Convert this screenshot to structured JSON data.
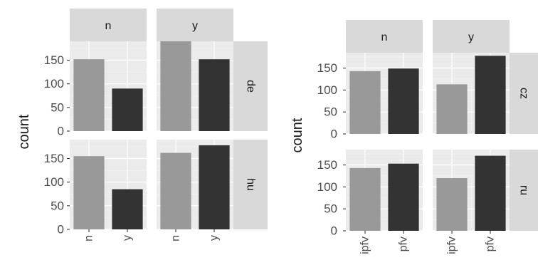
{
  "colors": {
    "panel_bg": "#ebebeb",
    "strip_bg": "#d9d9d9",
    "grid_major": "#ffffff",
    "grid_minor": "#f2f2f2",
    "text": "#1a1a1a",
    "tick_text": "#4d4d4d",
    "bar_light": "#999999",
    "bar_dark": "#333333"
  },
  "chart_data": [
    {
      "type": "bar",
      "facet_cols": [
        "n",
        "y"
      ],
      "facet_rows": [
        "de",
        "hu"
      ],
      "categories": [
        "n",
        "y"
      ],
      "ylabel": "count",
      "xlabel": "",
      "ylim": [
        0,
        190
      ],
      "yticks": [
        0,
        50,
        100,
        150
      ],
      "grid": true,
      "panels": [
        {
          "col": "n",
          "row": "de",
          "values": [
            152,
            90
          ]
        },
        {
          "col": "y",
          "row": "de",
          "values": [
            190,
            152
          ]
        },
        {
          "col": "n",
          "row": "hu",
          "values": [
            155,
            85
          ]
        },
        {
          "col": "y",
          "row": "hu",
          "values": [
            162,
            178
          ]
        }
      ]
    },
    {
      "type": "bar",
      "facet_cols": [
        "n",
        "y"
      ],
      "facet_rows": [
        "cz",
        "ru"
      ],
      "categories": [
        "ipfv",
        "pfv"
      ],
      "ylabel": "count",
      "xlabel": "",
      "ylim": [
        0,
        185
      ],
      "yticks": [
        0,
        50,
        100,
        150
      ],
      "grid": true,
      "panels": [
        {
          "col": "n",
          "row": "cz",
          "values": [
            143,
            149
          ]
        },
        {
          "col": "y",
          "row": "cz",
          "values": [
            113,
            178
          ]
        },
        {
          "col": "n",
          "row": "ru",
          "values": [
            143,
            153
          ]
        },
        {
          "col": "y",
          "row": "ru",
          "values": [
            120,
            171
          ]
        }
      ]
    }
  ]
}
